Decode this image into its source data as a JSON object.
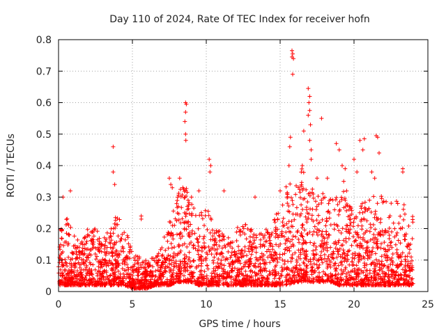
{
  "chart_data": {
    "type": "scatter",
    "title": "Day 110 of 2024, Rate Of TEC Index for receiver hofn",
    "xlabel": "GPS time / hours",
    "ylabel": "ROTI / TECUs",
    "xlim": [
      0,
      25
    ],
    "ylim": [
      0,
      0.8
    ],
    "xticks": [
      0,
      5,
      10,
      15,
      20,
      25
    ],
    "yticks": [
      0,
      0.1,
      0.2,
      0.3,
      0.4,
      0.5,
      0.6,
      0.7,
      0.8
    ],
    "xtick_labels": [
      "0",
      "5",
      "10",
      "15",
      "20",
      "25"
    ],
    "ytick_labels": [
      "0",
      "0.1",
      "0.2",
      "0.3",
      "0.4",
      "0.5",
      "0.6",
      "0.7",
      "0.8"
    ],
    "grid": true,
    "marker": "+",
    "color": "#ff0000",
    "data_coverage": [
      0,
      24
    ],
    "envelope": {
      "x": [
        0,
        0.5,
        1,
        1.5,
        2,
        2.5,
        3,
        3.5,
        4,
        4.5,
        5,
        5.5,
        6,
        6.5,
        7,
        7.5,
        8,
        8.5,
        9,
        9.5,
        10,
        10.5,
        11,
        11.5,
        12,
        12.5,
        13,
        13.5,
        14,
        14.5,
        15,
        15.5,
        16,
        16.5,
        17,
        17.5,
        18,
        18.5,
        19,
        19.5,
        20,
        20.5,
        21,
        21.5,
        22,
        22.5,
        23,
        23.5,
        24
      ],
      "typical_max": [
        0.2,
        0.25,
        0.18,
        0.16,
        0.2,
        0.2,
        0.17,
        0.2,
        0.25,
        0.22,
        0.12,
        0.11,
        0.1,
        0.11,
        0.14,
        0.25,
        0.3,
        0.35,
        0.28,
        0.24,
        0.28,
        0.22,
        0.2,
        0.18,
        0.2,
        0.22,
        0.2,
        0.18,
        0.2,
        0.22,
        0.28,
        0.35,
        0.38,
        0.4,
        0.35,
        0.3,
        0.32,
        0.3,
        0.35,
        0.3,
        0.25,
        0.28,
        0.3,
        0.32,
        0.3,
        0.28,
        0.3,
        0.28,
        0.25
      ],
      "typical_min": [
        0.02,
        0.02,
        0.02,
        0.02,
        0.02,
        0.02,
        0.02,
        0.02,
        0.02,
        0.02,
        0.01,
        0.01,
        0.01,
        0.02,
        0.02,
        0.02,
        0.03,
        0.03,
        0.03,
        0.02,
        0.02,
        0.02,
        0.02,
        0.02,
        0.02,
        0.02,
        0.02,
        0.02,
        0.02,
        0.02,
        0.02,
        0.02,
        0.03,
        0.03,
        0.03,
        0.03,
        0.03,
        0.03,
        0.02,
        0.02,
        0.02,
        0.02,
        0.02,
        0.02,
        0.02,
        0.02,
        0.02,
        0.02,
        0.02
      ]
    },
    "notable_points": [
      {
        "x": 3.7,
        "y": 0.46
      },
      {
        "x": 3.7,
        "y": 0.38
      },
      {
        "x": 3.8,
        "y": 0.34
      },
      {
        "x": 0.8,
        "y": 0.32
      },
      {
        "x": 0.3,
        "y": 0.3
      },
      {
        "x": 8.6,
        "y": 0.6
      },
      {
        "x": 8.65,
        "y": 0.595
      },
      {
        "x": 8.6,
        "y": 0.57
      },
      {
        "x": 8.55,
        "y": 0.54
      },
      {
        "x": 8.6,
        "y": 0.5
      },
      {
        "x": 8.62,
        "y": 0.48
      },
      {
        "x": 10.2,
        "y": 0.42
      },
      {
        "x": 10.3,
        "y": 0.4
      },
      {
        "x": 10.25,
        "y": 0.38
      },
      {
        "x": 15.8,
        "y": 0.765
      },
      {
        "x": 15.85,
        "y": 0.755
      },
      {
        "x": 15.8,
        "y": 0.745
      },
      {
        "x": 15.9,
        "y": 0.74
      },
      {
        "x": 15.85,
        "y": 0.69
      },
      {
        "x": 15.7,
        "y": 0.49
      },
      {
        "x": 15.65,
        "y": 0.46
      },
      {
        "x": 15.6,
        "y": 0.4
      },
      {
        "x": 16.9,
        "y": 0.645
      },
      {
        "x": 17.0,
        "y": 0.62
      },
      {
        "x": 16.95,
        "y": 0.6
      },
      {
        "x": 17.0,
        "y": 0.575
      },
      {
        "x": 16.9,
        "y": 0.56
      },
      {
        "x": 17.05,
        "y": 0.53
      },
      {
        "x": 16.6,
        "y": 0.51
      },
      {
        "x": 17.0,
        "y": 0.48
      },
      {
        "x": 17.1,
        "y": 0.45
      },
      {
        "x": 17.1,
        "y": 0.42
      },
      {
        "x": 16.5,
        "y": 0.4
      },
      {
        "x": 17.8,
        "y": 0.55
      },
      {
        "x": 17.5,
        "y": 0.36
      },
      {
        "x": 18.2,
        "y": 0.36
      },
      {
        "x": 18.8,
        "y": 0.47
      },
      {
        "x": 19.0,
        "y": 0.45
      },
      {
        "x": 19.2,
        "y": 0.4
      },
      {
        "x": 19.4,
        "y": 0.39
      },
      {
        "x": 19.3,
        "y": 0.35
      },
      {
        "x": 19.5,
        "y": 0.32
      },
      {
        "x": 20.4,
        "y": 0.48
      },
      {
        "x": 20.7,
        "y": 0.485
      },
      {
        "x": 20.6,
        "y": 0.45
      },
      {
        "x": 21.5,
        "y": 0.495
      },
      {
        "x": 21.6,
        "y": 0.49
      },
      {
        "x": 21.7,
        "y": 0.44
      },
      {
        "x": 21.2,
        "y": 0.38
      },
      {
        "x": 21.4,
        "y": 0.36
      },
      {
        "x": 23.3,
        "y": 0.39
      },
      {
        "x": 23.3,
        "y": 0.38
      },
      {
        "x": 20.0,
        "y": 0.42
      },
      {
        "x": 20.2,
        "y": 0.38
      },
      {
        "x": 5.6,
        "y": 0.24
      },
      {
        "x": 5.6,
        "y": 0.23
      },
      {
        "x": 7.5,
        "y": 0.36
      },
      {
        "x": 7.6,
        "y": 0.34
      },
      {
        "x": 7.7,
        "y": 0.33
      },
      {
        "x": 8.2,
        "y": 0.36
      },
      {
        "x": 9.0,
        "y": 0.3
      },
      {
        "x": 9.5,
        "y": 0.32
      },
      {
        "x": 11.2,
        "y": 0.32
      },
      {
        "x": 13.3,
        "y": 0.3
      },
      {
        "x": 15.0,
        "y": 0.32
      }
    ]
  }
}
